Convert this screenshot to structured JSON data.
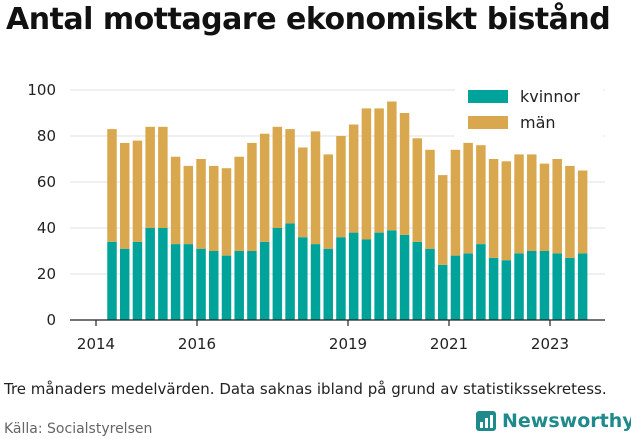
{
  "title": "Antal mottagare ekonomiskt bistånd",
  "note": "Tre månaders medelvärden. Data saknas ibland på grund av statistikssekretess.",
  "source": "Källa: Socialstyrelsen",
  "brand": {
    "name": "Newsworthy",
    "icon": "bar-chart-logo-icon",
    "color": "#1f8a8c"
  },
  "chart_data": {
    "type": "bar",
    "stacked": true,
    "ylim": [
      0,
      100
    ],
    "yticks": [
      "0",
      "20",
      "40",
      "60",
      "80",
      "100"
    ],
    "xticks": [
      "2014",
      "2016",
      "2019",
      "2021",
      "2023"
    ],
    "xlabel": "",
    "ylabel": "",
    "legend_position": "top-right",
    "grid": "horizontal",
    "colors": {
      "kvinnor": "#00a39a",
      "man": "#d9a84e"
    },
    "categories": [
      "2014-Q3",
      "2014-Q4",
      "2015-Q1",
      "2015-Q2",
      "2015-Q3",
      "2015-Q4",
      "2016-Q1",
      "2016-Q2",
      "2016-Q3",
      "2016-Q4",
      "2017-Q1",
      "2017-Q2",
      "2017-Q3",
      "2017-Q4",
      "2018-Q1",
      "2018-Q2",
      "2018-Q3",
      "2018-Q4",
      "2019-Q1",
      "2019-Q2",
      "2019-Q3",
      "2019-Q4",
      "2020-Q1",
      "2020-Q2",
      "2020-Q3",
      "2020-Q4",
      "2021-Q1",
      "2021-Q2",
      "2021-Q3",
      "2021-Q4",
      "2022-Q1",
      "2022-Q2",
      "2022-Q3",
      "2022-Q4",
      "2023-Q1",
      "2023-Q2",
      "2023-Q3",
      "2023-Q4"
    ],
    "series": [
      {
        "name": "kvinnor",
        "values": [
          34,
          31,
          34,
          40,
          40,
          33,
          33,
          31,
          30,
          28,
          30,
          30,
          34,
          40,
          42,
          36,
          33,
          31,
          36,
          38,
          35,
          38,
          39,
          37,
          34,
          31,
          24,
          28,
          29,
          33,
          27,
          26,
          29,
          30,
          30,
          29,
          27,
          29
        ]
      },
      {
        "name": "män",
        "values": [
          49,
          46,
          44,
          44,
          44,
          38,
          34,
          39,
          37,
          38,
          41,
          47,
          47,
          44,
          41,
          39,
          49,
          41,
          44,
          47,
          57,
          54,
          56,
          53,
          45,
          43,
          39,
          46,
          48,
          43,
          43,
          43,
          43,
          42,
          38,
          41,
          40,
          36
        ]
      }
    ]
  }
}
